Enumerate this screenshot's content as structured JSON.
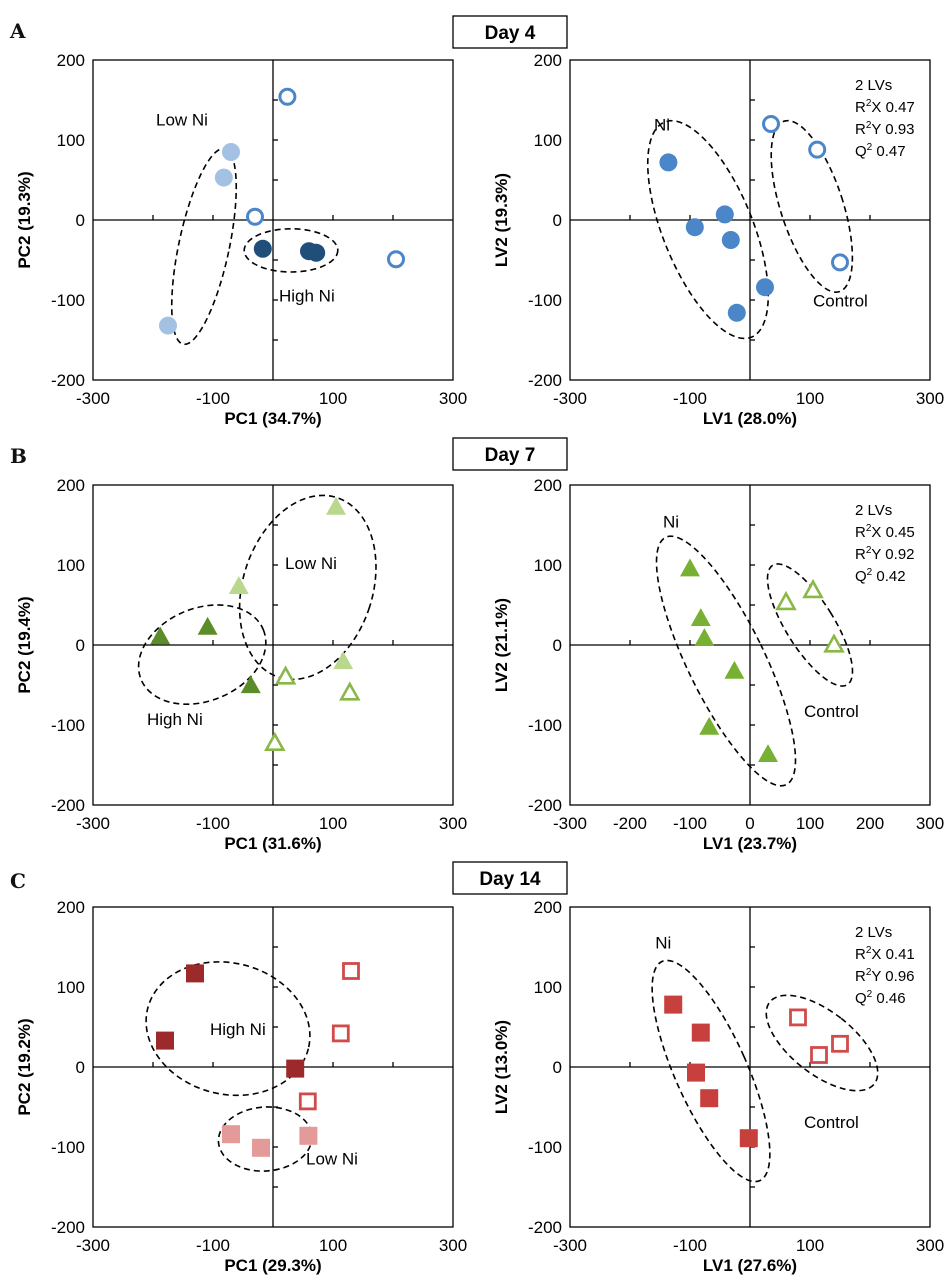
{
  "colors": {
    "day4_low": "#a3c2e3",
    "day4_high": "#1f4e79",
    "day4_control": "#4a86c8",
    "day4_ni": "#4a86c8",
    "day7_low": "#b9d88e",
    "day7_high": "#5b8c2a",
    "day7_control": "#8ab847",
    "day7_ni": "#77b033",
    "day14_low": "#e39a98",
    "day14_high": "#9c2a2a",
    "day14_control": "#d14b4b",
    "day14_ni": "#c8403d"
  },
  "rows": [
    {
      "letter": "A",
      "day_label": "Day 4",
      "panels": [
        {
          "xlabel": "PC1 (34.7%)",
          "ylabel": "PC2 (19.3%)",
          "annotations": [
            {
              "text": "Low Ni",
              "x": -195,
              "y": 118
            },
            {
              "text": "High Ni",
              "x": 10,
              "y": -102
            }
          ],
          "stats": null
        },
        {
          "xlabel": "LV1 (28.0%)",
          "ylabel": "LV2 (19.3%)",
          "annotations": [
            {
              "text": "Ni",
              "x": -160,
              "y": 112
            },
            {
              "text": "Control",
              "x": 105,
              "y": -108
            }
          ],
          "stats": [
            "2 LVs",
            "R²X 0.47",
            "R²Y 0.93",
            "Q² 0.47"
          ]
        }
      ]
    },
    {
      "letter": "B",
      "day_label": "Day 7",
      "panels": [
        {
          "xlabel": "PC1 (31.6%)",
          "ylabel": "PC2 (19.4%)",
          "annotations": [
            {
              "text": "Low Ni",
              "x": 20,
              "y": 95
            },
            {
              "text": "High Ni",
              "x": -210,
              "y": -100
            }
          ],
          "stats": null
        },
        {
          "xlabel": "LV1 (23.7%)",
          "ylabel": "LV2 (21.1%)",
          "annotations": [
            {
              "text": "Ni",
              "x": -145,
              "y": 147
            },
            {
              "text": "Control",
              "x": 90,
              "y": -90
            }
          ],
          "stats": [
            "2 LVs",
            "R²X 0.45",
            "R²Y 0.92",
            "Q² 0.42"
          ]
        }
      ]
    },
    {
      "letter": "C",
      "day_label": "Day 14",
      "panels": [
        {
          "xlabel": "PC1 (29.3%)",
          "ylabel": "PC2 (19.2%)",
          "annotations": [
            {
              "text": "High Ni",
              "x": -105,
              "y": 40
            },
            {
              "text": "Low Ni",
              "x": 55,
              "y": -122
            }
          ],
          "stats": null
        },
        {
          "xlabel": "LV1 (27.6%)",
          "ylabel": "LV2 (13.0%)",
          "annotations": [
            {
              "text": "Ni",
              "x": -158,
              "y": 148
            },
            {
              "text": "Control",
              "x": 90,
              "y": -76
            }
          ],
          "stats": [
            "2 LVs",
            "R²X 0.41",
            "R²Y 0.96",
            "Q² 0.46"
          ]
        }
      ]
    }
  ],
  "chart_data": [
    {
      "type": "scatter",
      "panel": "Day 4 PCA",
      "xlabel": "PC1 (34.7%)",
      "ylabel": "PC2 (19.3%)",
      "xlim": [
        -300,
        300
      ],
      "ylim": [
        -200,
        200
      ],
      "x_ticks": [
        -300,
        -100,
        100,
        300
      ],
      "y_ticks": [
        -200,
        -100,
        0,
        100,
        200
      ],
      "marker": "circle",
      "series": [
        {
          "name": "Low Ni",
          "color": "#a3c2e3",
          "filled": true,
          "points": [
            [
              -70,
              85
            ],
            [
              -82,
              53
            ],
            [
              -175,
              -132
            ]
          ]
        },
        {
          "name": "High Ni",
          "color": "#1f4e79",
          "filled": true,
          "points": [
            [
              -17,
              -36
            ],
            [
              60,
              -39
            ],
            [
              72,
              -41
            ]
          ]
        },
        {
          "color": "#4a86c8",
          "filled": false,
          "points": [
            [
              24,
              154
            ],
            [
              -30,
              4
            ],
            [
              205,
              -49
            ]
          ]
        }
      ],
      "ellipses": [
        {
          "cx": -115,
          "cy": -33,
          "rx": 42,
          "ry": 125,
          "angle": 12
        },
        {
          "cx": 30,
          "cy": -38,
          "rx": 78,
          "ry": 27,
          "angle": 0
        }
      ]
    },
    {
      "type": "scatter",
      "panel": "Day 4 PLS-DA",
      "xlabel": "LV1 (28.0%)",
      "ylabel": "LV2 (19.3%)",
      "xlim": [
        -300,
        300
      ],
      "ylim": [
        -200,
        200
      ],
      "x_ticks": [
        -300,
        -100,
        100,
        300
      ],
      "y_ticks": [
        -200,
        -100,
        0,
        100,
        200
      ],
      "marker": "circle",
      "series": [
        {
          "name": "Ni",
          "color": "#4a86c8",
          "filled": true,
          "points": [
            [
              -136,
              72
            ],
            [
              -92,
              -9
            ],
            [
              -42,
              7
            ],
            [
              -32,
              -25
            ],
            [
              -22,
              -116
            ],
            [
              25,
              -84
            ]
          ]
        },
        {
          "name": "Control",
          "color": "#4a86c8",
          "filled": false,
          "points": [
            [
              35,
              120
            ],
            [
              112,
              88
            ],
            [
              150,
              -53
            ]
          ]
        }
      ],
      "stats": [
        "2 LVs",
        "R²X 0.47",
        "R²Y 0.93",
        "Q² 0.47"
      ],
      "ellipses": [
        {
          "cx": -70,
          "cy": -12,
          "rx": 75,
          "ry": 145,
          "angle": -22
        },
        {
          "cx": 103,
          "cy": 17,
          "rx": 52,
          "ry": 112,
          "angle": -18
        }
      ]
    },
    {
      "type": "scatter",
      "panel": "Day 7 PCA",
      "xlabel": "PC1 (31.6%)",
      "ylabel": "PC2 (19.4%)",
      "xlim": [
        -300,
        300
      ],
      "ylim": [
        -200,
        200
      ],
      "x_ticks": [
        -300,
        -100,
        100,
        300
      ],
      "y_ticks": [
        -200,
        -100,
        0,
        100,
        200
      ],
      "marker": "triangle",
      "series": [
        {
          "name": "Low Ni",
          "color": "#b9d88e",
          "filled": true,
          "points": [
            [
              -57,
              73
            ],
            [
              105,
              172
            ],
            [
              117,
              -21
            ]
          ]
        },
        {
          "name": "High Ni",
          "color": "#5b8c2a",
          "filled": true,
          "points": [
            [
              -188,
              10
            ],
            [
              -109,
              22
            ],
            [
              -37,
              -51
            ]
          ]
        },
        {
          "color": "#8ab847",
          "filled": false,
          "points": [
            [
              21,
              -40
            ],
            [
              128,
              -60
            ],
            [
              3,
              -123
            ]
          ]
        }
      ],
      "ellipses": [
        {
          "cx": -118,
          "cy": -12,
          "rx": 110,
          "ry": 58,
          "angle": -22
        },
        {
          "cx": 58,
          "cy": 72,
          "rx": 108,
          "ry": 118,
          "angle": 18
        }
      ]
    },
    {
      "type": "scatter",
      "panel": "Day 7 PLS-DA",
      "xlabel": "LV1 (23.7%)",
      "ylabel": "LV2 (21.1%)",
      "xlim": [
        -300,
        300
      ],
      "ylim": [
        -200,
        200
      ],
      "x_ticks": [
        -300,
        -200,
        -100,
        0,
        100,
        200,
        300
      ],
      "y_ticks": [
        -200,
        -100,
        0,
        100,
        200
      ],
      "marker": "triangle",
      "series": [
        {
          "name": "Ni",
          "color": "#77b033",
          "filled": true,
          "points": [
            [
              -100,
              95
            ],
            [
              -82,
              33
            ],
            [
              -76,
              8
            ],
            [
              -26,
              -33
            ],
            [
              -68,
              -103
            ],
            [
              30,
              -137
            ]
          ]
        },
        {
          "name": "Control",
          "color": "#8ab847",
          "filled": false,
          "points": [
            [
              60,
              53
            ],
            [
              105,
              68
            ],
            [
              140,
              0
            ]
          ]
        }
      ],
      "stats": [
        "2 LVs",
        "R²X 0.45",
        "R²Y 0.92",
        "Q² 0.42"
      ],
      "ellipses": [
        {
          "cx": -40,
          "cy": -20,
          "rx": 64,
          "ry": 172,
          "angle": -26
        },
        {
          "cx": 100,
          "cy": 25,
          "rx": 40,
          "ry": 88,
          "angle": -32
        }
      ]
    },
    {
      "type": "scatter",
      "panel": "Day 14 PCA",
      "xlabel": "PC1 (29.3%)",
      "ylabel": "PC2 (19.2%)",
      "xlim": [
        -300,
        300
      ],
      "ylim": [
        -200,
        200
      ],
      "x_ticks": [
        -300,
        -100,
        100,
        300
      ],
      "y_ticks": [
        -200,
        -100,
        0,
        100,
        200
      ],
      "marker": "square",
      "series": [
        {
          "name": "High Ni",
          "color": "#9c2a2a",
          "filled": true,
          "points": [
            [
              -130,
              117
            ],
            [
              -180,
              33
            ],
            [
              37,
              -2
            ]
          ]
        },
        {
          "name": "Low Ni",
          "color": "#e39a98",
          "filled": true,
          "points": [
            [
              -70,
              -84
            ],
            [
              -20,
              -101
            ],
            [
              59,
              -86
            ]
          ]
        },
        {
          "color": "#d14b4b",
          "filled": false,
          "points": [
            [
              130,
              120
            ],
            [
              113,
              42
            ],
            [
              58,
              -43
            ]
          ]
        }
      ],
      "ellipses": [
        {
          "cx": -75,
          "cy": 48,
          "rx": 138,
          "ry": 82,
          "angle": 14
        },
        {
          "cx": -13,
          "cy": -90,
          "rx": 78,
          "ry": 40,
          "angle": -4
        }
      ]
    },
    {
      "type": "scatter",
      "panel": "Day 14 PLS-DA",
      "xlabel": "LV1 (27.6%)",
      "ylabel": "LV2 (13.0%)",
      "xlim": [
        -300,
        300
      ],
      "ylim": [
        -200,
        200
      ],
      "x_ticks": [
        -300,
        -100,
        100,
        300
      ],
      "y_ticks": [
        -200,
        -100,
        0,
        100,
        200
      ],
      "marker": "square",
      "series": [
        {
          "name": "Ni",
          "color": "#c8403d",
          "filled": true,
          "points": [
            [
              -128,
              78
            ],
            [
              -82,
              43
            ],
            [
              -90,
              -7
            ],
            [
              -68,
              -39
            ],
            [
              -2,
              -89
            ]
          ]
        },
        {
          "name": "Control",
          "color": "#d14b4b",
          "filled": false,
          "points": [
            [
              80,
              62
            ],
            [
              115,
              15
            ],
            [
              150,
              29
            ]
          ]
        }
      ],
      "stats": [
        "2 LVs",
        "R²X 0.41",
        "R²Y 0.96",
        "Q² 0.46"
      ],
      "ellipses": [
        {
          "cx": -65,
          "cy": -5,
          "rx": 60,
          "ry": 150,
          "angle": -24
        },
        {
          "cx": 120,
          "cy": 30,
          "rx": 52,
          "ry": 83,
          "angle": -52
        }
      ]
    }
  ]
}
